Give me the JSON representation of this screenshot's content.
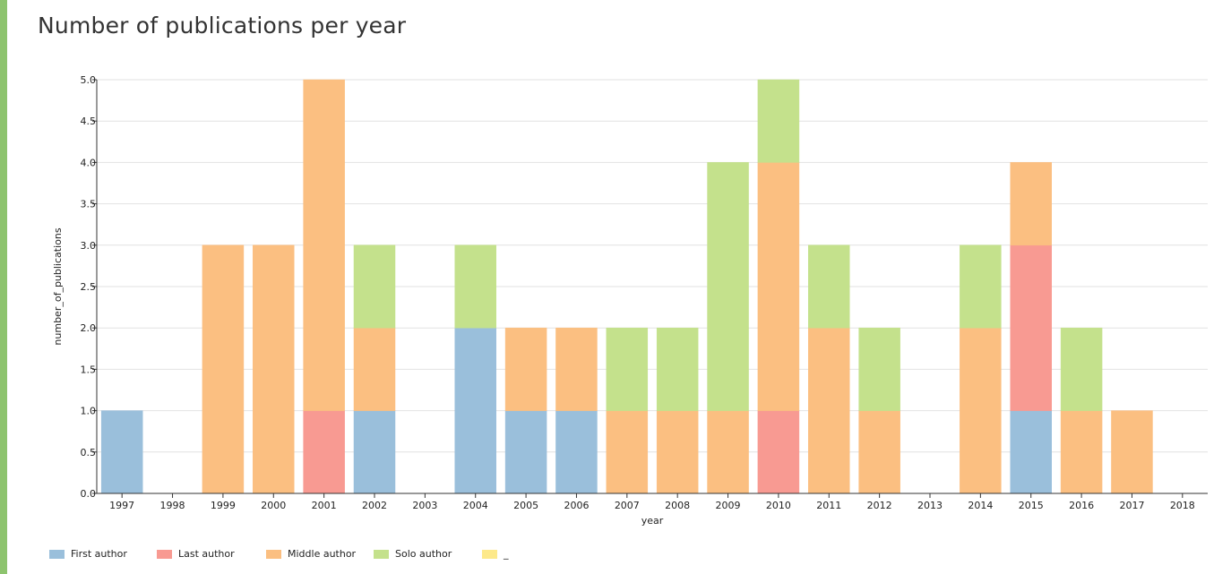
{
  "page": {
    "title": "Number of publications per year"
  },
  "chart_data": {
    "type": "bar",
    "stacked": true,
    "title": "Number of publications per year",
    "xlabel": "year",
    "ylabel": "number_of_publications",
    "ylim": [
      0,
      5
    ],
    "yticks": [
      "0.0",
      "0.5",
      "1.0",
      "1.5",
      "2.0",
      "2.5",
      "3.0",
      "3.5",
      "4.0",
      "4.5",
      "5.0"
    ],
    "grid": true,
    "legend_position": "bottom-left",
    "categories": [
      "1997",
      "1998",
      "1999",
      "2000",
      "2001",
      "2002",
      "2003",
      "2004",
      "2005",
      "2006",
      "2007",
      "2008",
      "2009",
      "2010",
      "2011",
      "2012",
      "2013",
      "2014",
      "2015",
      "2016",
      "2017",
      "2018"
    ],
    "series": [
      {
        "name": "First author",
        "color": "#9abfdb",
        "values": [
          1,
          0,
          0,
          0,
          0,
          1,
          0,
          2,
          1,
          1,
          0,
          0,
          0,
          0,
          0,
          0,
          0,
          0,
          1,
          0,
          0,
          0
        ]
      },
      {
        "name": "Last author",
        "color": "#f89a92",
        "values": [
          0,
          0,
          0,
          0,
          1,
          0,
          0,
          0,
          0,
          0,
          0,
          0,
          0,
          1,
          0,
          0,
          0,
          0,
          2,
          0,
          0,
          0
        ]
      },
      {
        "name": "Middle author",
        "color": "#fbbf81",
        "values": [
          0,
          0,
          3,
          3,
          4,
          1,
          0,
          0,
          1,
          1,
          1,
          1,
          1,
          3,
          2,
          1,
          0,
          2,
          1,
          1,
          1,
          0
        ]
      },
      {
        "name": "Solo author",
        "color": "#c4e18c",
        "values": [
          0,
          0,
          0,
          0,
          0,
          1,
          0,
          1,
          0,
          0,
          1,
          1,
          3,
          1,
          1,
          1,
          0,
          1,
          0,
          1,
          0,
          0
        ]
      },
      {
        "name": "_",
        "color": "#fde98a",
        "values": [
          0,
          0,
          0,
          0,
          0,
          0,
          0,
          0,
          0,
          0,
          0,
          0,
          0,
          0,
          0,
          0,
          0,
          0,
          0,
          0,
          0,
          0
        ]
      }
    ]
  }
}
